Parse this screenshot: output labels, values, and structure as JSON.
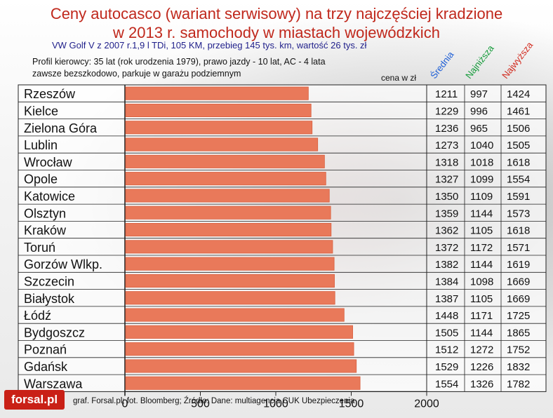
{
  "texts": {
    "title_line1": "Ceny autocasco (wariant serwisowy) na trzy najczęściej kradzione",
    "title_line2": "w 2013 r. samochody w miastach wojewódzkich",
    "subtitle": "VW Golf V z 2007 r.1,9 l TDi, 105 KM, przebieg 145 tys. km, wartość 26 tys. zł",
    "profile_line1": "Profil kierowcy: 35 lat (rok urodzenia 1979), prawo jazdy - 10 lat, AC - 4 lata",
    "profile_line2": "zawsze bezszkodowo, parkuje w garażu podziemnym",
    "unit": "cena w zł",
    "col_avg": "Średnia",
    "col_low": "Najniższa",
    "col_high": "Najwyższa",
    "footer": "graf. Forsal.pl;   fot. Bloomberg; Źródło: Dane: multiagencja CUK Ubezpieczenia",
    "logo": "forsal.pl"
  },
  "colors": {
    "bar": "#e9795a",
    "bar_edge": "#d9603f",
    "title": "#c0281c",
    "avg": "#1e5fd6",
    "low": "#159b3a",
    "high": "#d22a1e"
  },
  "chart_data": {
    "type": "bar",
    "orientation": "horizontal",
    "xlim": [
      0,
      2000
    ],
    "xticks": [
      0,
      500,
      1000,
      1500,
      2000
    ],
    "categories": [
      "Rzeszów",
      "Kielce",
      "Zielona Góra",
      "Lublin",
      "Wrocław",
      "Opole",
      "Katowice",
      "Olsztyn",
      "Kraków",
      "Toruń",
      "Gorzów Wlkp.",
      "Szczecin",
      "Białystok",
      "Łódź",
      "Bydgoszcz",
      "Poznań",
      "Gdańsk",
      "Warszawa"
    ],
    "series": [
      {
        "name": "Średnia",
        "values": [
          1211,
          1229,
          1236,
          1273,
          1318,
          1327,
          1350,
          1359,
          1362,
          1372,
          1382,
          1384,
          1387,
          1448,
          1505,
          1512,
          1529,
          1554
        ]
      },
      {
        "name": "Najniższa",
        "values": [
          997,
          996,
          965,
          1040,
          1018,
          1099,
          1109,
          1144,
          1105,
          1172,
          1144,
          1098,
          1105,
          1171,
          1144,
          1272,
          1226,
          1326
        ]
      },
      {
        "name": "Najwyższa",
        "values": [
          1424,
          1461,
          1506,
          1505,
          1618,
          1554,
          1591,
          1573,
          1618,
          1571,
          1619,
          1669,
          1669,
          1725,
          1865,
          1752,
          1832,
          1782
        ]
      }
    ],
    "grid": false
  }
}
